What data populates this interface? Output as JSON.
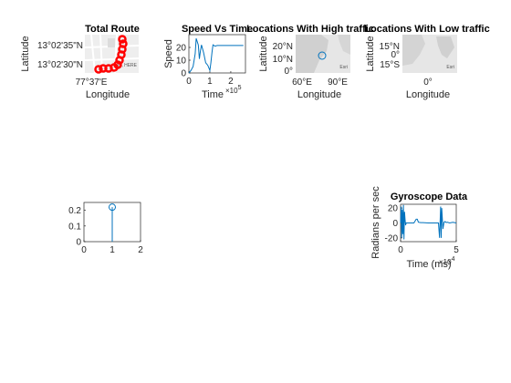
{
  "chart_data": [
    {
      "type": "geoscatter",
      "title": "Total Route",
      "xlabel": "Longitude",
      "ylabel": "Latitude",
      "yticks": [
        "13°02'35\"N",
        "13°02'30\"N"
      ],
      "xticks": [
        "77°37'E"
      ],
      "basemap_credit": "Esri, HERE",
      "marker_color": "#ff0000",
      "route": [
        {
          "lon": "77°37'39\"E",
          "lat": "13°02'37\"N"
        },
        {
          "lon": "77°37'39\"E",
          "lat": "13°02'33\"N"
        },
        {
          "lon": "77°37'37\"E",
          "lat": "13°02'30\"N"
        },
        {
          "lon": "77°37'31\"E",
          "lat": "13°02'28\"N"
        }
      ]
    },
    {
      "type": "line",
      "title": "Speed Vs Time",
      "xlabel": "Time",
      "ylabel": "Speed",
      "x_exponent_label": "×10^5",
      "xlim": [
        0,
        2.7
      ],
      "ylim": [
        0,
        30
      ],
      "xticks": [
        "0",
        "1",
        "2"
      ],
      "yticks": [
        "0",
        "10",
        "20"
      ],
      "series": [
        {
          "color": "#0072bd",
          "x": [
            0,
            0.1,
            0.2,
            0.3,
            0.35,
            0.45,
            0.5,
            0.55,
            0.6,
            0.7,
            0.8,
            0.9,
            1.0,
            1.05,
            1.1,
            1.15,
            1.25,
            1.35,
            1.5,
            1.8,
            2.1,
            2.4,
            2.6
          ],
          "y": [
            0,
            2,
            5,
            15,
            27,
            22,
            11,
            17,
            22,
            16,
            8,
            6,
            2,
            8,
            16,
            22,
            21,
            21.5,
            21.5,
            21.5,
            21.5,
            21.5,
            21.5
          ]
        }
      ]
    },
    {
      "type": "geoscatter",
      "title": "Locations With High traffic",
      "xlabel": "Longitude",
      "ylabel": "Latitude",
      "xticks": [
        "60°E",
        "90°E"
      ],
      "yticks": [
        "20°N",
        "10°N",
        "0°"
      ],
      "basemap_credit": "Esri",
      "points": [
        {
          "lon": 78,
          "lat": 13
        }
      ],
      "marker_color": "#0072bd"
    },
    {
      "type": "geoscatter",
      "title": "Locations With Low traffic",
      "xlabel": "Longitude",
      "ylabel": "Latitude",
      "xticks": [
        "0°"
      ],
      "yticks": [
        "15°N",
        "0°",
        "15°S"
      ],
      "basemap_credit": "Esri",
      "points": []
    },
    {
      "type": "stem",
      "title": "",
      "xlim": [
        0,
        2
      ],
      "ylim": [
        0,
        0.25
      ],
      "xticks": [
        "0",
        "1",
        "2"
      ],
      "yticks": [
        "0",
        "0.1",
        "0.2"
      ],
      "series": [
        {
          "color": "#0072bd",
          "x": [
            1
          ],
          "y": [
            0.22
          ]
        }
      ]
    },
    {
      "type": "line",
      "title": "Gyroscope Data",
      "xlabel": "Time (ms)",
      "ylabel": "Radians per sec",
      "x_exponent_label": "×10^4",
      "xlim": [
        0,
        5
      ],
      "ylim": [
        -25,
        25
      ],
      "xticks": [
        "0",
        "5"
      ],
      "yticks": [
        "20",
        "0",
        "-20"
      ],
      "series": [
        {
          "color": "#0072bd",
          "x": [
            0,
            0.05,
            0.1,
            0.15,
            0.2,
            0.25,
            0.3,
            0.35,
            0.4,
            0.45,
            0.5,
            0.6,
            0.8,
            1.0,
            1.2,
            1.4,
            1.5,
            1.6,
            1.8,
            2.0,
            2.5,
            3.0,
            3.4,
            3.5,
            3.6,
            3.65,
            3.7,
            3.8,
            3.9,
            4.0,
            4.1,
            4.2,
            4.4,
            4.7,
            5.0
          ],
          "y": [
            0,
            22,
            -20,
            18,
            -15,
            24,
            -22,
            15,
            5,
            -3,
            0,
            0,
            0,
            0,
            0,
            5,
            5,
            1,
            0.5,
            0.5,
            0,
            0,
            0,
            -20,
            22,
            -20,
            20,
            -8,
            1,
            2,
            0.5,
            1,
            0,
            1,
            0
          ]
        }
      ]
    }
  ]
}
